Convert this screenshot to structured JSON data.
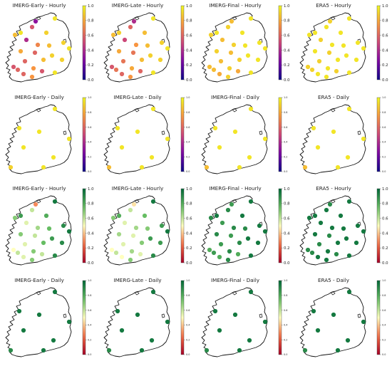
{
  "chart_data": [
    {
      "type": "scatter",
      "title": "IMERG-Early - Hourly",
      "cmap": "plasma",
      "ylim": [
        0,
        1
      ],
      "ticks": [
        "0.0",
        "0.2",
        "0.4",
        "0.6",
        "0.8",
        "1.0"
      ],
      "values": [
        0.85,
        0.95,
        0.3,
        0.55,
        0.4,
        0.9,
        0.95,
        0.7,
        0.85,
        0.9,
        0.8,
        0.95,
        0.6,
        0.9,
        0.85,
        0.6,
        0.9,
        0.75,
        0.6,
        0.6,
        0.55,
        0.95,
        0.55,
        0.75
      ]
    },
    {
      "type": "scatter",
      "title": "IMERG-Late - Hourly",
      "cmap": "plasma",
      "ylim": [
        0,
        1
      ],
      "ticks": [
        "0.0",
        "0.2",
        "0.4",
        "0.6",
        "0.8",
        "1.0"
      ],
      "values": [
        0.85,
        0.9,
        0.4,
        0.6,
        0.5,
        0.85,
        0.95,
        0.75,
        0.85,
        0.9,
        0.8,
        0.95,
        0.65,
        0.9,
        0.85,
        0.65,
        0.9,
        0.8,
        0.65,
        0.6,
        0.55,
        0.95,
        0.6,
        0.75
      ]
    },
    {
      "type": "scatter",
      "title": "IMERG-Final - Hourly",
      "cmap": "plasma",
      "ylim": [
        0,
        1
      ],
      "ticks": [
        "0.0",
        "0.2",
        "0.4",
        "0.6",
        "0.8",
        "1.0"
      ],
      "values": [
        0.9,
        0.95,
        0.85,
        0.9,
        0.85,
        0.95,
        0.95,
        0.9,
        0.95,
        0.95,
        0.9,
        0.95,
        0.85,
        0.95,
        0.9,
        0.85,
        0.95,
        0.9,
        0.85,
        0.8,
        0.85,
        0.95,
        0.8,
        0.9
      ]
    },
    {
      "type": "scatter",
      "title": "ERA5 - Hourly",
      "cmap": "plasma",
      "ylim": [
        0,
        1
      ],
      "ticks": [
        "0.0",
        "0.2",
        "0.4",
        "0.6",
        "0.8",
        "1.0"
      ],
      "values": [
        0.95,
        0.95,
        0.9,
        0.95,
        0.9,
        0.95,
        0.95,
        0.95,
        0.95,
        0.95,
        0.95,
        0.95,
        0.9,
        0.95,
        0.95,
        0.9,
        0.95,
        0.95,
        0.9,
        0.95,
        0.9,
        0.95,
        0.9,
        0.95
      ]
    },
    {
      "type": "scatter",
      "title": "IMERG-Early - Daily",
      "cmap": "plasma",
      "ylim": [
        0,
        1
      ],
      "ticks": [
        "0.0",
        "0.2",
        "0.4",
        "0.6",
        "0.8",
        "1.0"
      ],
      "values": [
        0.95,
        0.95,
        0.95,
        0.95,
        0.95,
        0.95,
        0.9,
        0.95
      ]
    },
    {
      "type": "scatter",
      "title": "IMERG-Late - Daily",
      "cmap": "plasma",
      "ylim": [
        0,
        1
      ],
      "ticks": [
        "0.0",
        "0.2",
        "0.4",
        "0.6",
        "0.8",
        "1.0"
      ],
      "values": [
        0.95,
        0.95,
        0.95,
        0.95,
        0.95,
        0.95,
        0.85,
        0.95
      ]
    },
    {
      "type": "scatter",
      "title": "IMERG-Final - Daily",
      "cmap": "plasma",
      "ylim": [
        0,
        1
      ],
      "ticks": [
        "0.0",
        "0.2",
        "0.4",
        "0.6",
        "0.8",
        "1.0"
      ],
      "values": [
        0.95,
        0.95,
        0.95,
        0.95,
        0.95,
        0.95,
        0.85,
        0.95
      ]
    },
    {
      "type": "scatter",
      "title": "ERA5 - Daily",
      "cmap": "plasma",
      "ylim": [
        0,
        1
      ],
      "ticks": [
        "0.0",
        "0.2",
        "0.4",
        "0.6",
        "0.8",
        "1.0"
      ],
      "values": [
        0.95,
        0.95,
        0.95,
        0.95,
        0.95,
        0.95,
        0.85,
        0.95
      ]
    },
    {
      "type": "scatter",
      "title": "IMERG-Early - Hourly",
      "cmap": "RdYlGn",
      "ylim": [
        0,
        1
      ],
      "ticks": [
        "0.0",
        "0.2",
        "0.4",
        "0.6",
        "0.8",
        "1.0"
      ],
      "values": [
        0.7,
        0.85,
        0.3,
        0.6,
        0.55,
        0.8,
        0.95,
        0.65,
        0.75,
        0.9,
        0.7,
        0.95,
        0.6,
        0.85,
        0.75,
        0.55,
        0.9,
        0.7,
        0.6,
        0.55,
        0.5,
        0.9,
        0.6,
        0.7
      ]
    },
    {
      "type": "scatter",
      "title": "IMERG-Late - Hourly",
      "cmap": "RdYlGn",
      "ylim": [
        0,
        1
      ],
      "ticks": [
        "0.0",
        "0.2",
        "0.4",
        "0.6",
        "0.8",
        "1.0"
      ],
      "values": [
        0.7,
        0.8,
        0.45,
        0.6,
        0.55,
        0.75,
        0.95,
        0.65,
        0.7,
        0.85,
        0.65,
        0.95,
        0.55,
        0.85,
        0.7,
        0.55,
        0.85,
        0.65,
        0.6,
        0.5,
        0.5,
        0.9,
        0.55,
        0.7
      ]
    },
    {
      "type": "scatter",
      "title": "IMERG-Final - Hourly",
      "cmap": "RdYlGn",
      "ylim": [
        0,
        1
      ],
      "ticks": [
        "0.0",
        "0.2",
        "0.4",
        "0.6",
        "0.8",
        "1.0"
      ],
      "values": [
        0.9,
        0.95,
        0.85,
        0.9,
        0.85,
        0.95,
        0.95,
        0.9,
        0.9,
        0.95,
        0.9,
        0.95,
        0.85,
        0.95,
        0.9,
        0.85,
        0.95,
        0.9,
        0.85,
        0.8,
        0.8,
        0.95,
        0.8,
        0.9
      ]
    },
    {
      "type": "scatter",
      "title": "ERA5 - Hourly",
      "cmap": "RdYlGn",
      "ylim": [
        0,
        1
      ],
      "ticks": [
        "0.0",
        "0.2",
        "0.4",
        "0.6",
        "0.8",
        "1.0"
      ],
      "values": [
        0.95,
        0.95,
        0.9,
        0.95,
        0.95,
        0.95,
        0.95,
        0.95,
        0.95,
        0.95,
        0.95,
        0.95,
        0.9,
        0.95,
        0.95,
        0.9,
        0.95,
        0.95,
        0.9,
        0.95,
        0.9,
        0.95,
        0.9,
        0.95
      ]
    },
    {
      "type": "scatter",
      "title": "IMERG-Early - Daily",
      "cmap": "RdYlGn",
      "ylim": [
        0,
        1
      ],
      "ticks": [
        "0.0",
        "0.2",
        "0.4",
        "0.6",
        "0.8",
        "1.0"
      ],
      "values": [
        0.95,
        0.95,
        0.95,
        0.95,
        0.95,
        0.95,
        0.9,
        0.95
      ]
    },
    {
      "type": "scatter",
      "title": "IMERG-Late - Daily",
      "cmap": "RdYlGn",
      "ylim": [
        0,
        1
      ],
      "ticks": [
        "0.0",
        "0.2",
        "0.4",
        "0.6",
        "0.8",
        "1.0"
      ],
      "values": [
        0.95,
        0.95,
        0.95,
        0.95,
        0.95,
        0.95,
        0.9,
        0.95
      ]
    },
    {
      "type": "scatter",
      "title": "IMERG-Final - Daily",
      "cmap": "RdYlGn",
      "ylim": [
        0,
        1
      ],
      "ticks": [
        "0.0",
        "0.2",
        "0.4",
        "0.6",
        "0.8",
        "1.0"
      ],
      "values": [
        0.95,
        0.95,
        0.95,
        0.95,
        0.95,
        0.95,
        0.9,
        0.95
      ]
    },
    {
      "type": "scatter",
      "title": "ERA5 - Daily",
      "cmap": "RdYlGn",
      "ylim": [
        0,
        1
      ],
      "ticks": [
        "0.0",
        "0.2",
        "0.4",
        "0.6",
        "0.8",
        "1.0"
      ],
      "values": [
        0.95,
        0.95,
        0.95,
        0.95,
        0.95,
        0.95,
        0.9,
        0.95
      ]
    }
  ]
}
